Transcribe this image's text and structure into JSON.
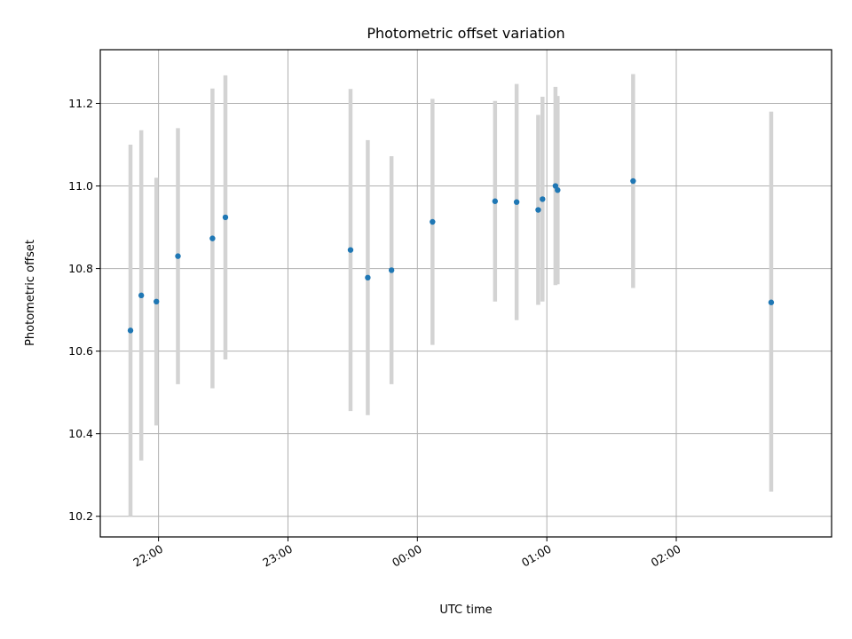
{
  "chart_data": {
    "type": "scatter",
    "title": "Photometric offset variation",
    "xlabel": "UTC time",
    "ylabel": "Photometric offset",
    "x_axis": "time",
    "xlim": [
      "21:33",
      "03:12"
    ],
    "ylim": [
      10.15,
      11.33
    ],
    "xticks": [
      "22:00",
      "23:00",
      "00:00",
      "01:00",
      "02:00"
    ],
    "yticks": [
      10.2,
      10.4,
      10.6,
      10.8,
      11.0,
      11.2
    ],
    "grid": true,
    "point_color": "#1f77b4",
    "errorbar_color": "#d3d3d3",
    "series": [
      {
        "points": [
          {
            "x": "21:47",
            "y": 10.65,
            "y_low": 10.2,
            "y_high": 11.1
          },
          {
            "x": "21:52",
            "y": 10.735,
            "y_low": 10.335,
            "y_high": 11.135
          },
          {
            "x": "21:59",
            "y": 10.72,
            "y_low": 10.42,
            "y_high": 11.02
          },
          {
            "x": "22:09",
            "y": 10.83,
            "y_low": 10.52,
            "y_high": 11.14
          },
          {
            "x": "22:25",
            "y": 10.873,
            "y_low": 10.51,
            "y_high": 11.236
          },
          {
            "x": "22:31",
            "y": 10.924,
            "y_low": 10.58,
            "y_high": 11.268
          },
          {
            "x": "23:29",
            "y": 10.845,
            "y_low": 10.455,
            "y_high": 11.235
          },
          {
            "x": "23:37",
            "y": 10.778,
            "y_low": 10.445,
            "y_high": 11.111
          },
          {
            "x": "23:48",
            "y": 10.796,
            "y_low": 10.52,
            "y_high": 11.072
          },
          {
            "x": "00:07",
            "y": 10.913,
            "y_low": 10.615,
            "y_high": 11.211
          },
          {
            "x": "00:36",
            "y": 10.963,
            "y_low": 10.72,
            "y_high": 11.206
          },
          {
            "x": "00:46",
            "y": 10.961,
            "y_low": 10.675,
            "y_high": 11.247
          },
          {
            "x": "00:56",
            "y": 10.942,
            "y_low": 10.712,
            "y_high": 11.172
          },
          {
            "x": "00:58",
            "y": 10.968,
            "y_low": 10.72,
            "y_high": 11.216
          },
          {
            "x": "01:04",
            "y": 11.0,
            "y_low": 10.76,
            "y_high": 11.24
          },
          {
            "x": "01:05",
            "y": 10.99,
            "y_low": 10.762,
            "y_high": 11.218
          },
          {
            "x": "01:40",
            "y": 11.012,
            "y_low": 10.753,
            "y_high": 11.271
          },
          {
            "x": "02:44",
            "y": 10.718,
            "y_low": 10.26,
            "y_high": 11.18
          }
        ]
      }
    ]
  }
}
